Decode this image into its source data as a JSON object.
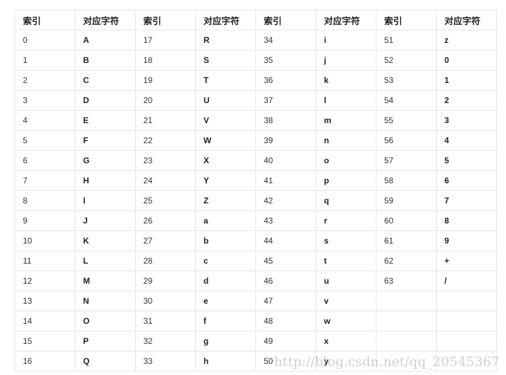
{
  "headers": [
    "索引",
    "对应字符",
    "索引",
    "对应字符",
    "索引",
    "对应字符",
    "索引",
    "对应字符"
  ],
  "rows": [
    [
      "0",
      "A",
      "17",
      "R",
      "34",
      "i",
      "51",
      "z"
    ],
    [
      "1",
      "B",
      "18",
      "S",
      "35",
      "j",
      "52",
      "0"
    ],
    [
      "2",
      "C",
      "19",
      "T",
      "36",
      "k",
      "53",
      "1"
    ],
    [
      "3",
      "D",
      "20",
      "U",
      "37",
      "l",
      "54",
      "2"
    ],
    [
      "4",
      "E",
      "21",
      "V",
      "38",
      "m",
      "55",
      "3"
    ],
    [
      "5",
      "F",
      "22",
      "W",
      "39",
      "n",
      "56",
      "4"
    ],
    [
      "6",
      "G",
      "23",
      "X",
      "40",
      "o",
      "57",
      "5"
    ],
    [
      "7",
      "H",
      "24",
      "Y",
      "41",
      "p",
      "58",
      "6"
    ],
    [
      "8",
      "I",
      "25",
      "Z",
      "42",
      "q",
      "59",
      "7"
    ],
    [
      "9",
      "J",
      "26",
      "a",
      "43",
      "r",
      "60",
      "8"
    ],
    [
      "10",
      "K",
      "27",
      "b",
      "44",
      "s",
      "61",
      "9"
    ],
    [
      "11",
      "L",
      "28",
      "c",
      "45",
      "t",
      "62",
      "+"
    ],
    [
      "12",
      "M",
      "29",
      "d",
      "46",
      "u",
      "63",
      "/"
    ],
    [
      "13",
      "N",
      "30",
      "e",
      "47",
      "v",
      "",
      ""
    ],
    [
      "14",
      "O",
      "31",
      "f",
      "48",
      "w",
      "",
      ""
    ],
    [
      "15",
      "P",
      "32",
      "g",
      "49",
      "x",
      "",
      ""
    ],
    [
      "16",
      "Q",
      "33",
      "h",
      "50",
      "y",
      "",
      ""
    ]
  ],
  "watermark": "http://blog.csdn.net/qq_20545367"
}
